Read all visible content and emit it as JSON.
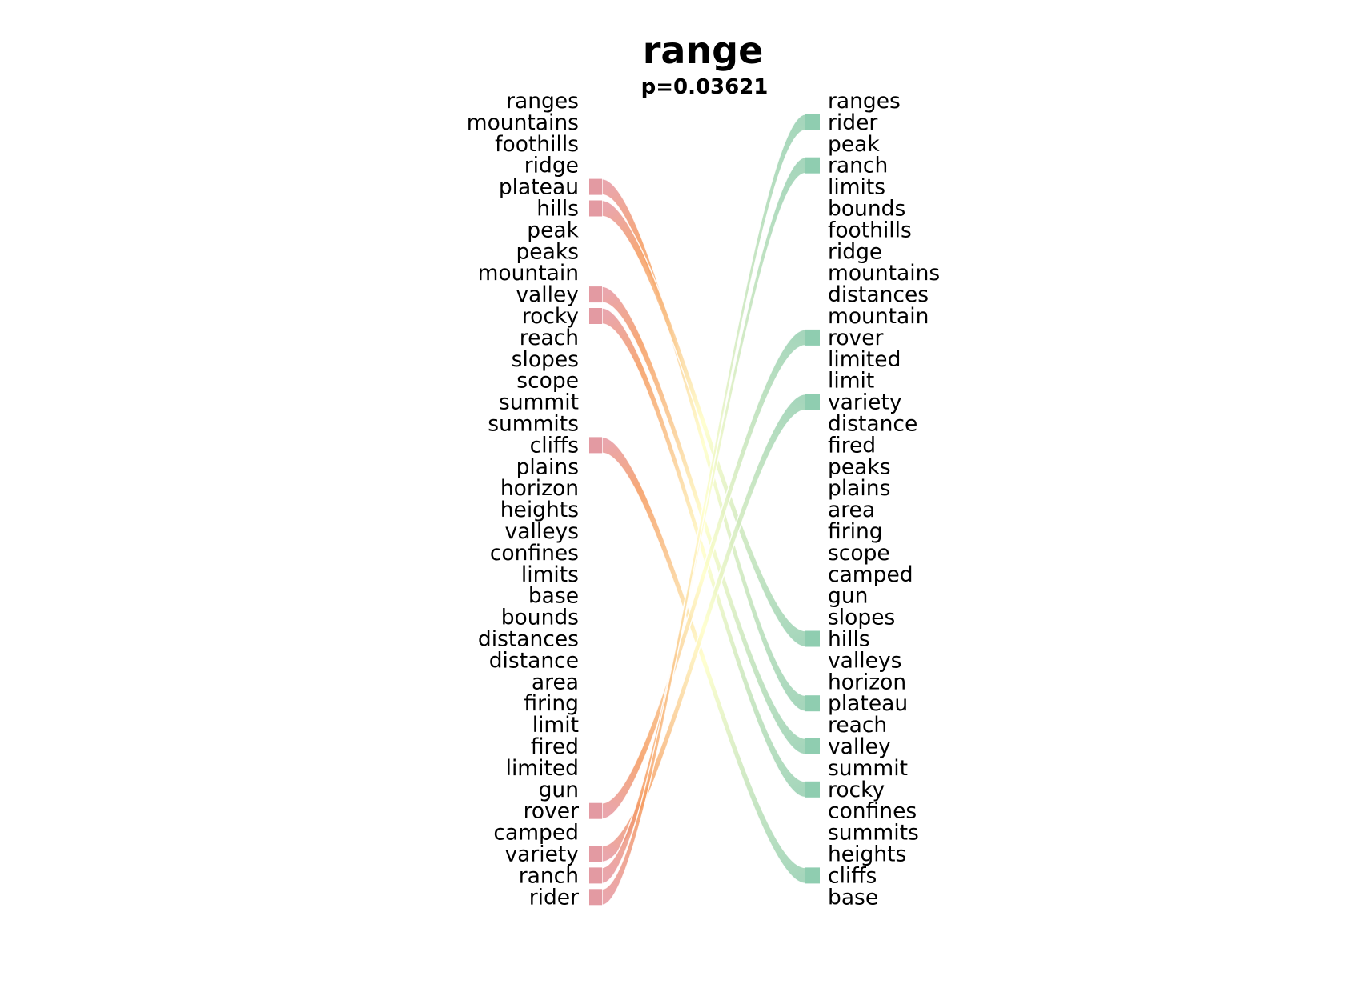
{
  "title": "range",
  "subtitle": "p=0.03621",
  "colors": {
    "left_marker": "#e39aa2",
    "right_marker": "#8fcdb0",
    "ribbon_start": "#e6969e",
    "ribbon_mid": "#ffffc8",
    "ribbon_end": "#96cfb0",
    "ribbon_highlight": "#f59a5f"
  },
  "left_words": [
    "ranges",
    "mountains",
    "foothills",
    "ridge",
    "plateau",
    "hills",
    "peak",
    "peaks",
    "mountain",
    "valley",
    "rocky",
    "reach",
    "slopes",
    "scope",
    "summit",
    "summits",
    "cliffs",
    "plains",
    "horizon",
    "heights",
    "valleys",
    "confines",
    "limits",
    "base",
    "bounds",
    "distances",
    "distance",
    "area",
    "firing",
    "limit",
    "fired",
    "limited",
    "gun",
    "rover",
    "camped",
    "variety",
    "ranch",
    "rider"
  ],
  "right_words": [
    "ranges",
    "rider",
    "peak",
    "ranch",
    "limits",
    "bounds",
    "foothills",
    "ridge",
    "mountains",
    "distances",
    "mountain",
    "rover",
    "limited",
    "limit",
    "variety",
    "distance",
    "fired",
    "peaks",
    "plains",
    "area",
    "firing",
    "scope",
    "camped",
    "gun",
    "slopes",
    "hills",
    "valleys",
    "horizon",
    "plateau",
    "reach",
    "valley",
    "summit",
    "rocky",
    "confines",
    "summits",
    "heights",
    "cliffs",
    "base"
  ],
  "links": [
    {
      "from": "plateau",
      "to": "plateau"
    },
    {
      "from": "hills",
      "to": "hills"
    },
    {
      "from": "valley",
      "to": "valley"
    },
    {
      "from": "rocky",
      "to": "rocky"
    },
    {
      "from": "cliffs",
      "to": "cliffs"
    },
    {
      "from": "rover",
      "to": "rover"
    },
    {
      "from": "variety",
      "to": "variety"
    },
    {
      "from": "ranch",
      "to": "ranch"
    },
    {
      "from": "rider",
      "to": "rider"
    }
  ]
}
